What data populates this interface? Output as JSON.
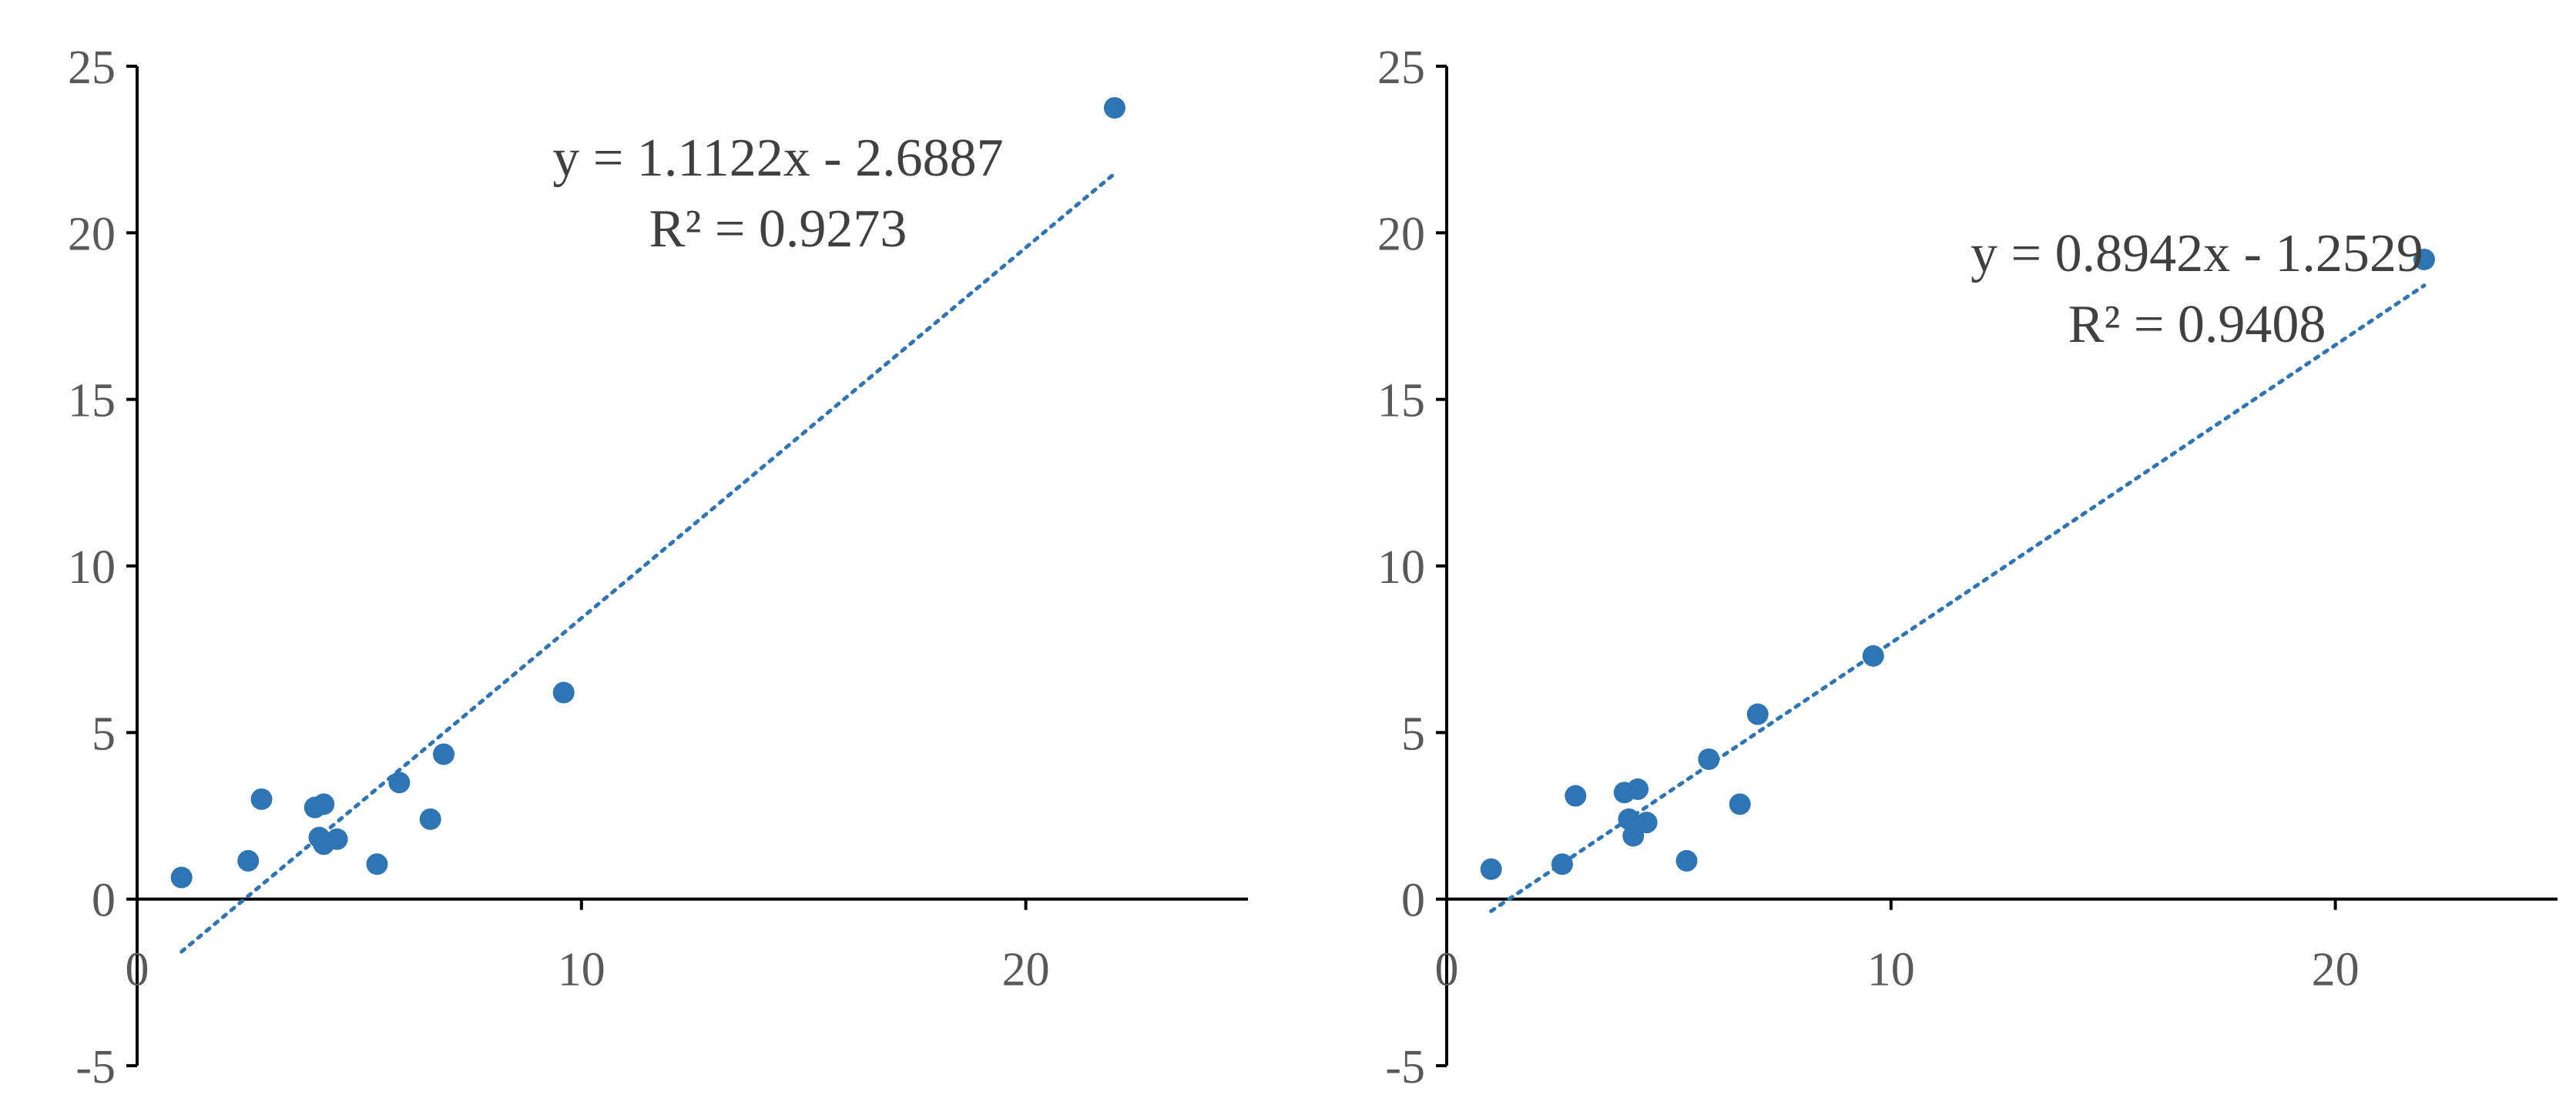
{
  "chart_data": [
    {
      "type": "scatter",
      "xlim": [
        0,
        25
      ],
      "ylim": [
        -5,
        25
      ],
      "x_ticks": [
        0,
        10,
        20
      ],
      "y_ticks": [
        -5,
        0,
        5,
        10,
        15,
        20,
        25
      ],
      "grid": false,
      "legend": "none",
      "marker_color": "#2E75B6",
      "trendline_color": "#2E75B6",
      "points": [
        {
          "x": 1.0,
          "y": 0.65
        },
        {
          "x": 2.5,
          "y": 1.15
        },
        {
          "x": 2.8,
          "y": 3.0
        },
        {
          "x": 4.0,
          "y": 2.75
        },
        {
          "x": 4.2,
          "y": 2.85
        },
        {
          "x": 4.1,
          "y": 1.85
        },
        {
          "x": 4.2,
          "y": 1.65
        },
        {
          "x": 4.5,
          "y": 1.8
        },
        {
          "x": 5.4,
          "y": 1.05
        },
        {
          "x": 5.9,
          "y": 3.5
        },
        {
          "x": 6.6,
          "y": 2.4
        },
        {
          "x": 6.9,
          "y": 4.35
        },
        {
          "x": 9.6,
          "y": 6.2
        },
        {
          "x": 22.0,
          "y": 23.75
        }
      ],
      "trendline": {
        "slope": 1.1122,
        "intercept": -2.6887,
        "x_range": [
          1.0,
          22.0
        ],
        "equation_label": "y = 1.1122x - 2.6887",
        "r2_label": "R² = 0.9273"
      }
    },
    {
      "type": "scatter",
      "xlim": [
        0,
        25
      ],
      "ylim": [
        -5,
        25
      ],
      "x_ticks": [
        0,
        10,
        20
      ],
      "y_ticks": [
        -5,
        0,
        5,
        10,
        15,
        20,
        25
      ],
      "grid": false,
      "legend": "none",
      "marker_color": "#2E75B6",
      "trendline_color": "#2E75B6",
      "points": [
        {
          "x": 1.0,
          "y": 0.9
        },
        {
          "x": 2.6,
          "y": 1.05
        },
        {
          "x": 2.9,
          "y": 3.1
        },
        {
          "x": 4.0,
          "y": 3.2
        },
        {
          "x": 4.3,
          "y": 3.3
        },
        {
          "x": 4.1,
          "y": 2.4
        },
        {
          "x": 4.2,
          "y": 1.9
        },
        {
          "x": 4.5,
          "y": 2.3
        },
        {
          "x": 5.4,
          "y": 1.15
        },
        {
          "x": 5.9,
          "y": 4.2
        },
        {
          "x": 6.6,
          "y": 2.85
        },
        {
          "x": 7.0,
          "y": 5.55
        },
        {
          "x": 9.6,
          "y": 7.3
        },
        {
          "x": 22.0,
          "y": 19.2
        }
      ],
      "trendline": {
        "slope": 0.8942,
        "intercept": -1.2529,
        "x_range": [
          1.0,
          22.0
        ],
        "equation_label": "y = 0.8942x - 1.2529",
        "r2_label": "R² = 0.9408"
      }
    }
  ]
}
